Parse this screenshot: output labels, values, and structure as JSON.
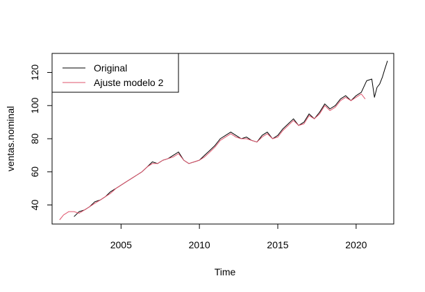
{
  "chart_data": {
    "type": "line",
    "title": "",
    "xlabel": "Time",
    "ylabel": "ventas.nominal",
    "xlim": [
      2000.6,
      2022.4
    ],
    "ylim": [
      28.5,
      131.5
    ],
    "x_ticks": [
      2005,
      2010,
      2015,
      2020
    ],
    "y_ticks": [
      40,
      60,
      80,
      100,
      120
    ],
    "grid": false,
    "legend_position": "top-left",
    "series": [
      {
        "name": "Original",
        "color": "#000000",
        "points": [
          [
            2002.0,
            33
          ],
          [
            2002.33,
            36
          ],
          [
            2002.67,
            37
          ],
          [
            2003.0,
            39
          ],
          [
            2003.33,
            42
          ],
          [
            2003.67,
            43
          ],
          [
            2004.0,
            45
          ],
          [
            2004.33,
            48
          ],
          [
            2004.67,
            50
          ],
          [
            2005.0,
            52
          ],
          [
            2005.33,
            54
          ],
          [
            2005.67,
            56
          ],
          [
            2006.0,
            58
          ],
          [
            2006.33,
            60
          ],
          [
            2006.67,
            63
          ],
          [
            2007.0,
            66
          ],
          [
            2007.33,
            65
          ],
          [
            2007.67,
            67
          ],
          [
            2008.0,
            68
          ],
          [
            2008.33,
            70
          ],
          [
            2008.67,
            72
          ],
          [
            2009.0,
            67
          ],
          [
            2009.33,
            65
          ],
          [
            2009.67,
            66
          ],
          [
            2010.0,
            67
          ],
          [
            2010.33,
            70
          ],
          [
            2010.67,
            73
          ],
          [
            2011.0,
            76
          ],
          [
            2011.33,
            80
          ],
          [
            2011.67,
            82
          ],
          [
            2012.0,
            84
          ],
          [
            2012.33,
            82
          ],
          [
            2012.67,
            80
          ],
          [
            2013.0,
            81
          ],
          [
            2013.33,
            79
          ],
          [
            2013.67,
            78
          ],
          [
            2014.0,
            82
          ],
          [
            2014.33,
            84
          ],
          [
            2014.67,
            80
          ],
          [
            2015.0,
            82
          ],
          [
            2015.33,
            86
          ],
          [
            2015.67,
            89
          ],
          [
            2016.0,
            92
          ],
          [
            2016.33,
            88
          ],
          [
            2016.67,
            90
          ],
          [
            2017.0,
            95
          ],
          [
            2017.33,
            92
          ],
          [
            2017.67,
            96
          ],
          [
            2018.0,
            101
          ],
          [
            2018.33,
            98
          ],
          [
            2018.67,
            100
          ],
          [
            2019.0,
            104
          ],
          [
            2019.33,
            106
          ],
          [
            2019.67,
            103
          ],
          [
            2020.0,
            106
          ],
          [
            2020.33,
            108
          ],
          [
            2020.67,
            115
          ],
          [
            2021.0,
            116
          ],
          [
            2021.17,
            105
          ],
          [
            2021.33,
            111
          ],
          [
            2021.5,
            113
          ],
          [
            2021.67,
            117
          ],
          [
            2021.83,
            122
          ],
          [
            2022.0,
            127
          ]
        ]
      },
      {
        "name": "Ajuste modelo 2",
        "color": "#DF536B",
        "points": [
          [
            2001.08,
            31
          ],
          [
            2001.33,
            34
          ],
          [
            2001.67,
            36
          ],
          [
            2002.0,
            36
          ],
          [
            2002.33,
            35
          ],
          [
            2002.67,
            37
          ],
          [
            2003.0,
            39
          ],
          [
            2003.33,
            41
          ],
          [
            2003.67,
            43
          ],
          [
            2004.0,
            45
          ],
          [
            2004.33,
            47
          ],
          [
            2004.67,
            50
          ],
          [
            2005.0,
            52
          ],
          [
            2005.33,
            54
          ],
          [
            2005.67,
            56
          ],
          [
            2006.0,
            58
          ],
          [
            2006.33,
            60
          ],
          [
            2006.67,
            63
          ],
          [
            2007.0,
            65
          ],
          [
            2007.33,
            65
          ],
          [
            2007.67,
            67
          ],
          [
            2008.0,
            68
          ],
          [
            2008.33,
            69
          ],
          [
            2008.67,
            71
          ],
          [
            2009.0,
            67
          ],
          [
            2009.33,
            65
          ],
          [
            2009.67,
            66
          ],
          [
            2010.0,
            67
          ],
          [
            2010.33,
            69
          ],
          [
            2010.67,
            72
          ],
          [
            2011.0,
            75
          ],
          [
            2011.33,
            79
          ],
          [
            2011.67,
            81
          ],
          [
            2012.0,
            83
          ],
          [
            2012.33,
            81
          ],
          [
            2012.67,
            80
          ],
          [
            2013.0,
            80
          ],
          [
            2013.33,
            79
          ],
          [
            2013.67,
            78
          ],
          [
            2014.0,
            81
          ],
          [
            2014.33,
            83
          ],
          [
            2014.67,
            80
          ],
          [
            2015.0,
            81
          ],
          [
            2015.33,
            85
          ],
          [
            2015.67,
            88
          ],
          [
            2016.0,
            91
          ],
          [
            2016.33,
            88
          ],
          [
            2016.67,
            89
          ],
          [
            2017.0,
            94
          ],
          [
            2017.33,
            92
          ],
          [
            2017.67,
            95
          ],
          [
            2018.0,
            100
          ],
          [
            2018.33,
            97
          ],
          [
            2018.67,
            99
          ],
          [
            2019.0,
            103
          ],
          [
            2019.33,
            105
          ],
          [
            2019.67,
            103
          ],
          [
            2020.0,
            105
          ],
          [
            2020.33,
            107
          ],
          [
            2020.58,
            104
          ]
        ]
      }
    ]
  }
}
